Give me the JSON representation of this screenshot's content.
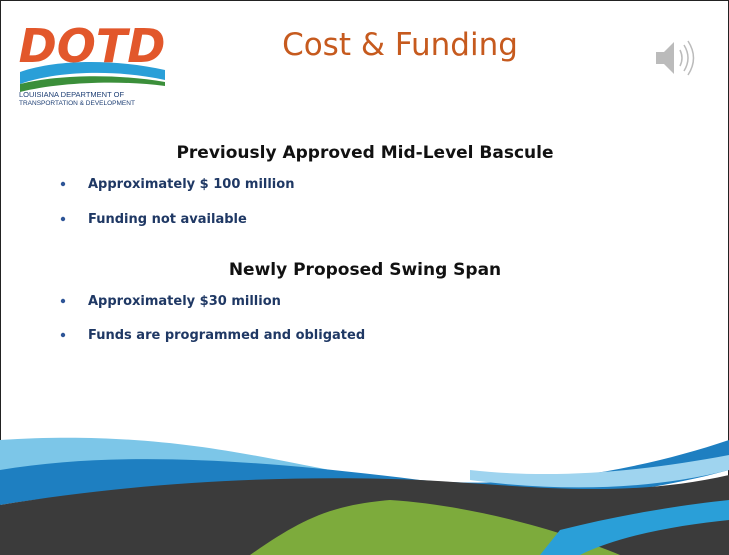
{
  "logo": {
    "mark": "DOTD",
    "line1": "LOUISIANA DEPARTMENT OF",
    "line2": "TRANSPORTATION & DEVELOPMENT"
  },
  "title": "Cost & Funding",
  "sections": [
    {
      "heading": "Previously Approved Mid-Level Bascule",
      "bullets": [
        "Approximately $ 100 million",
        "Funding not available"
      ]
    },
    {
      "heading": "Newly Proposed Swing Span",
      "bullets": [
        "Approximately $30 million",
        "Funds are programmed and obligated"
      ]
    }
  ]
}
